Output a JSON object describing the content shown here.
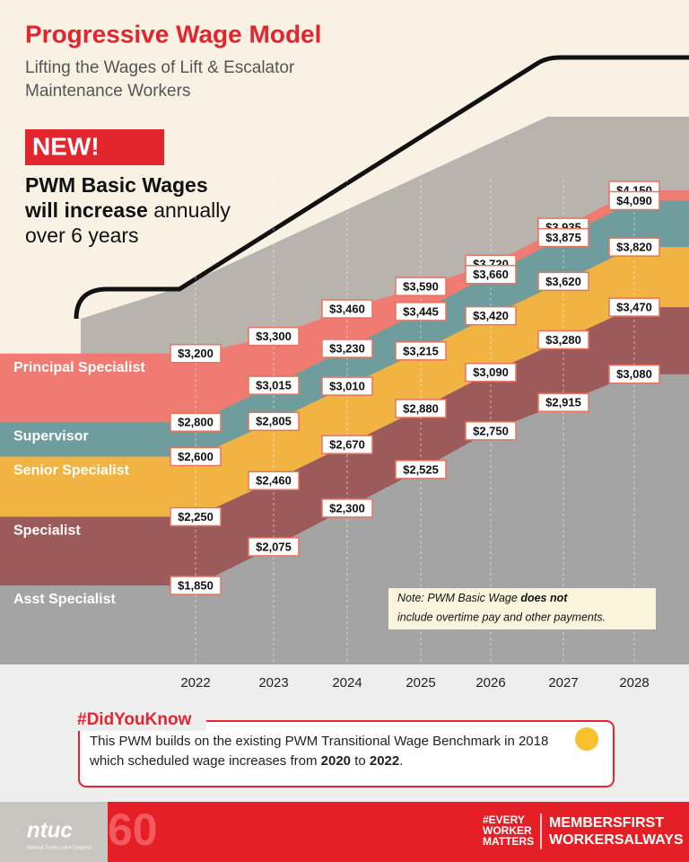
{
  "header": {
    "title": "Progressive Wage Model",
    "subtitle_lines": [
      "Lifting the Wages of Lift & Escalator",
      "Maintenance Workers"
    ],
    "badge": "NEW!",
    "headline": [
      "PWM Basic Wages",
      "will increase",
      "annually",
      "over 6 years"
    ]
  },
  "chart_data": {
    "type": "area",
    "categories": [
      "2022",
      "2023",
      "2024",
      "2025",
      "2026",
      "2027",
      "2028"
    ],
    "series": [
      {
        "name": "Principal Specialist",
        "color": "#ef7b72",
        "values": [
          3200,
          3300,
          3460,
          3590,
          3720,
          3935,
          4150
        ],
        "value_labels": [
          "$3,200",
          "$3,300",
          "$3,460",
          "$3,590",
          "$3,720",
          "$3,935",
          "$4,150"
        ]
      },
      {
        "name": "Supervisor",
        "color": "#6f9c9c",
        "values": [
          2800,
          3015,
          3230,
          3445,
          3660,
          3875,
          4090
        ],
        "value_labels": [
          "$2,800",
          "$3,015",
          "$3,230",
          "$3,445",
          "$3,660",
          "$3,875",
          "$4,090"
        ]
      },
      {
        "name": "Senior Specialist",
        "color": "#f1b443",
        "values": [
          2600,
          2805,
          3010,
          3215,
          3420,
          3620,
          3820
        ],
        "value_labels": [
          "$2,600",
          "$2,805",
          "$3,010",
          "$3,215",
          "$3,420",
          "$3,620",
          "$3,820"
        ]
      },
      {
        "name": "Specialist",
        "color": "#9c5a5b",
        "values": [
          2250,
          2460,
          2670,
          2880,
          3090,
          3280,
          3470
        ],
        "value_labels": [
          "$2,250",
          "$2,460",
          "$2,670",
          "$2,880",
          "$3,090",
          "$3,280",
          "$3,470"
        ]
      },
      {
        "name": "Asst Specialist",
        "color": "#a4a4a4",
        "values": [
          1850,
          2075,
          2300,
          2525,
          2750,
          2915,
          3080
        ],
        "value_labels": [
          "$1,850",
          "$2,075",
          "$2,300",
          "$2,525",
          "$2,750",
          "$2,915",
          "$3,080"
        ]
      }
    ],
    "note": [
      "Note: PWM Basic Wage",
      "does not",
      "include overtime pay and other payments."
    ]
  },
  "did_you_know": {
    "title": "#DidYouKnow",
    "text": [
      "This PWM builds on the existing PWM Transitional Wage Benchmark in 2018 which scheduled wage increases from",
      "2020",
      "to",
      "2022",
      "."
    ]
  },
  "footer": {
    "logo": "ntuc",
    "logo_sub": "National Trades Union Congress",
    "anniversary": "60",
    "tag1": [
      "#EVERY",
      "WORKER",
      "MATTERS"
    ],
    "tag2": [
      "MEMBERSFIRST",
      "WORKERSALWAYS"
    ]
  }
}
